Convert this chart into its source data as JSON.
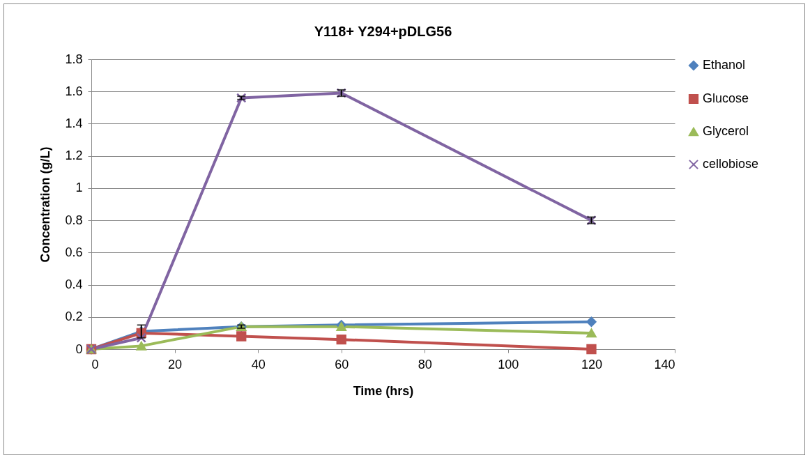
{
  "chart_data": {
    "type": "line",
    "title": "Y118+ Y294+pDLG56",
    "xlabel": "Time (hrs)",
    "ylabel": "Concentration (g/L)",
    "x": [
      0,
      12,
      36,
      60,
      120
    ],
    "xlim": [
      0,
      140
    ],
    "xticks": [
      0,
      20,
      40,
      60,
      80,
      100,
      120,
      140
    ],
    "ylim": [
      0,
      1.8
    ],
    "yticks": [
      0,
      0.2,
      0.4,
      0.6,
      0.8,
      1,
      1.2,
      1.4,
      1.6,
      1.8
    ],
    "grid": "y",
    "legend": "right",
    "series": [
      {
        "name": "Ethanol",
        "color": "#4f81bd",
        "marker": "diamond",
        "values": [
          0,
          0.11,
          0.14,
          0.15,
          0.17
        ],
        "errors": [
          null,
          0.04,
          0.01,
          null,
          null
        ]
      },
      {
        "name": "Glucose",
        "color": "#c0504d",
        "marker": "square",
        "values": [
          0,
          0.1,
          0.08,
          0.06,
          0
        ]
      },
      {
        "name": "Glycerol",
        "color": "#9bbb59",
        "marker": "triangle",
        "values": [
          0,
          0.02,
          0.14,
          0.14,
          0.1
        ]
      },
      {
        "name": "cellobiose",
        "color": "#8064a2",
        "marker": "cross",
        "values": [
          0,
          0.07,
          1.56,
          1.59,
          0.8
        ],
        "errors": [
          null,
          null,
          0.01,
          0.02,
          0.02
        ]
      }
    ]
  }
}
